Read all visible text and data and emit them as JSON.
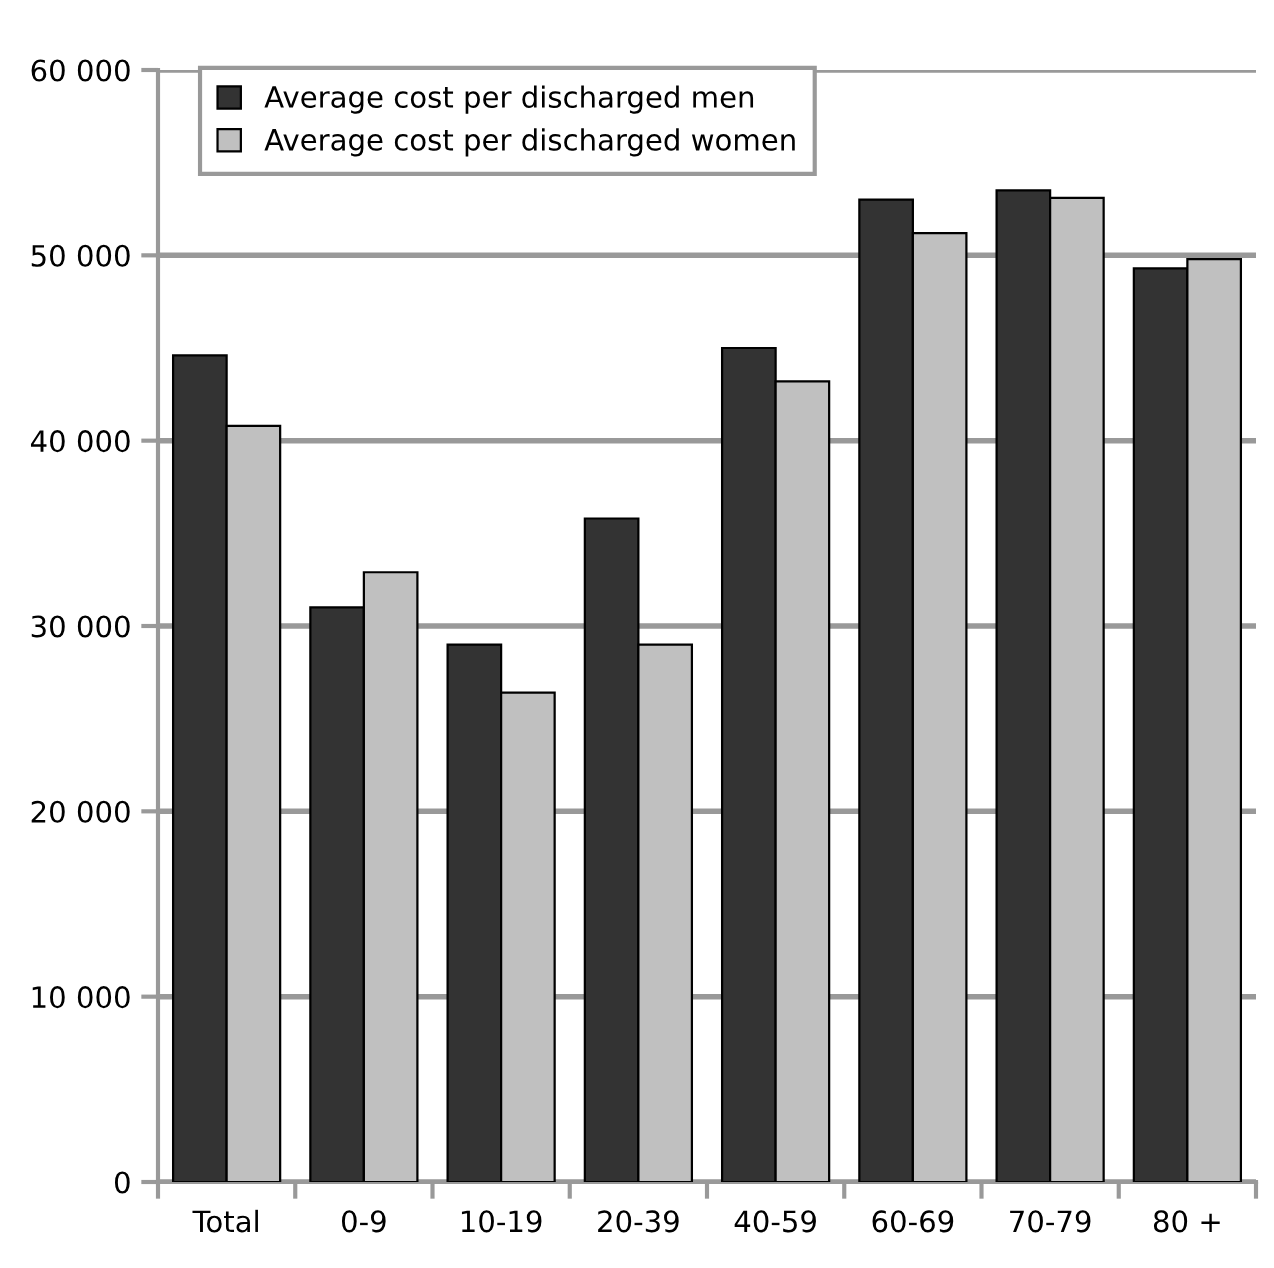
{
  "chart_data": {
    "type": "bar",
    "categories": [
      "Total",
      "0-9",
      "10-19",
      "20-39",
      "40-59",
      "60-69",
      "70-79",
      "80 +"
    ],
    "series": [
      {
        "name": "Average cost per discharged men",
        "color": "#333333",
        "values": [
          44600,
          31000,
          29000,
          35800,
          45000,
          53000,
          53500,
          49300
        ]
      },
      {
        "name": "Average cost per discharged women",
        "color": "#c0c0c0",
        "values": [
          40800,
          32900,
          26400,
          29000,
          43200,
          51200,
          53100,
          49800
        ]
      }
    ],
    "ylim": [
      0,
      60000
    ],
    "yticks": [
      {
        "value": 0,
        "label": "0"
      },
      {
        "value": 10000,
        "label": "10 000"
      },
      {
        "value": 20000,
        "label": "20 000"
      },
      {
        "value": 30000,
        "label": "30 000"
      },
      {
        "value": 40000,
        "label": "40 000"
      },
      {
        "value": 50000,
        "label": "50 000"
      },
      {
        "value": 60000,
        "label": "60 000"
      }
    ],
    "grid": "y",
    "legend": "top left"
  }
}
